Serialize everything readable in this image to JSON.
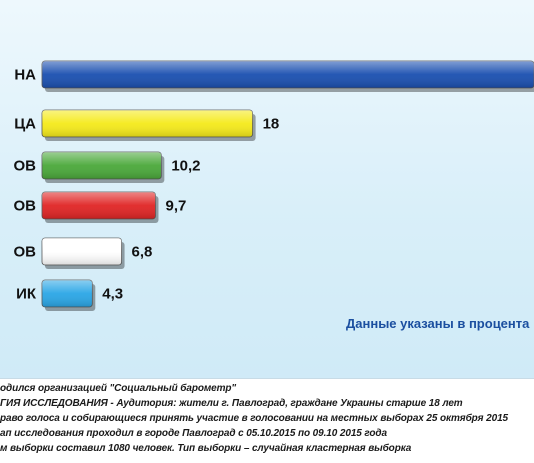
{
  "chart_data": {
    "type": "bar",
    "orientation": "horizontal",
    "categories": [
      "НА",
      "ЦА",
      "ОВ",
      "ОВ",
      "ОВ",
      "ИК"
    ],
    "values": [
      null,
      18,
      10.2,
      9.7,
      6.8,
      4.3
    ],
    "value_labels": [
      "",
      "18",
      "10,2",
      "9,7",
      "6,8",
      "4,3"
    ],
    "colors": [
      "#1a4fb0",
      "#f5ea1a",
      "#4aa83a",
      "#e02424",
      "#ffffff",
      "#2aa6e6"
    ],
    "note": "Данные указаны в процента",
    "grid": false,
    "legend": "none"
  },
  "footer": {
    "lines": [
      "одился организацией \"Социальный барометр\"",
      "ГИЯ ИССЛЕДОВАНИЯ -  Аудитория: жители г. Павлоград, граждане Украины старше 18 лет",
      "раво голоса и собирающиеся принять участие в голосовании на местных выборах 25 октября 2015",
      "ап исследования проходил в городе Павлоград с 05.10.2015  по 09.10 2015 года",
      "м выборки составил 1080 человек. Тип выборки – случайная кластерная выборка"
    ]
  }
}
